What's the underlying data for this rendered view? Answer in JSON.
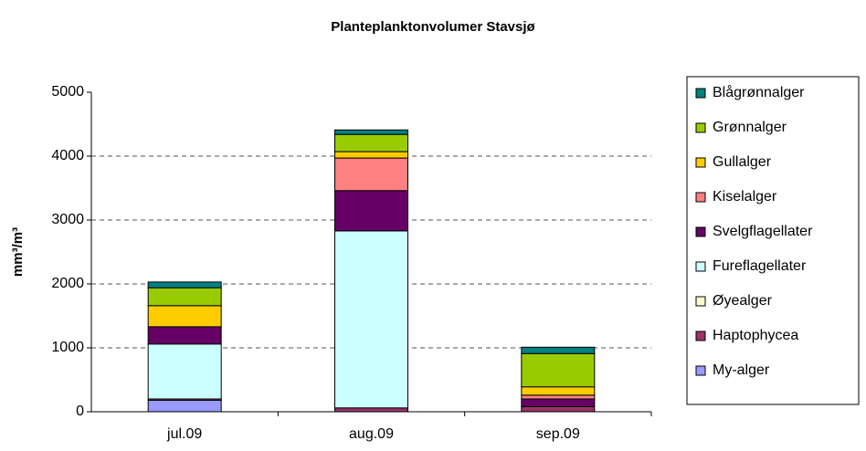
{
  "chart_data": {
    "type": "stacked_bar",
    "title": "Planteplanktonvolumer Stavsjø",
    "y_label": "mm³/m³",
    "categories": [
      "jul.09",
      "aug.09",
      "sep.09"
    ],
    "series": [
      {
        "name": "My-alger",
        "color": "#9999ff",
        "values": [
          180,
          0,
          0
        ]
      },
      {
        "name": "Haptophycea",
        "color": "#993366",
        "values": [
          20,
          60,
          80
        ]
      },
      {
        "name": "Øyealger",
        "color": "#ffffcc",
        "values": [
          0,
          0,
          0
        ]
      },
      {
        "name": "Fureflagellater",
        "color": "#ccffff",
        "values": [
          860,
          2770,
          0
        ]
      },
      {
        "name": "Svelgflagellater",
        "color": "#660066",
        "values": [
          270,
          630,
          120
        ]
      },
      {
        "name": "Kiselalger",
        "color": "#ff8080",
        "values": [
          0,
          510,
          60
        ]
      },
      {
        "name": "Gullalger",
        "color": "#ffcc00",
        "values": [
          330,
          100,
          130
        ]
      },
      {
        "name": "Grønnalger",
        "color": "#99cc00",
        "values": [
          280,
          270,
          520
        ]
      },
      {
        "name": "Blågrønnalger",
        "color": "#008080",
        "values": [
          90,
          70,
          100
        ]
      }
    ],
    "ylim": [
      0,
      5000
    ],
    "yticks": [
      0,
      1000,
      2000,
      3000,
      4000,
      5000
    ],
    "grid": true
  }
}
